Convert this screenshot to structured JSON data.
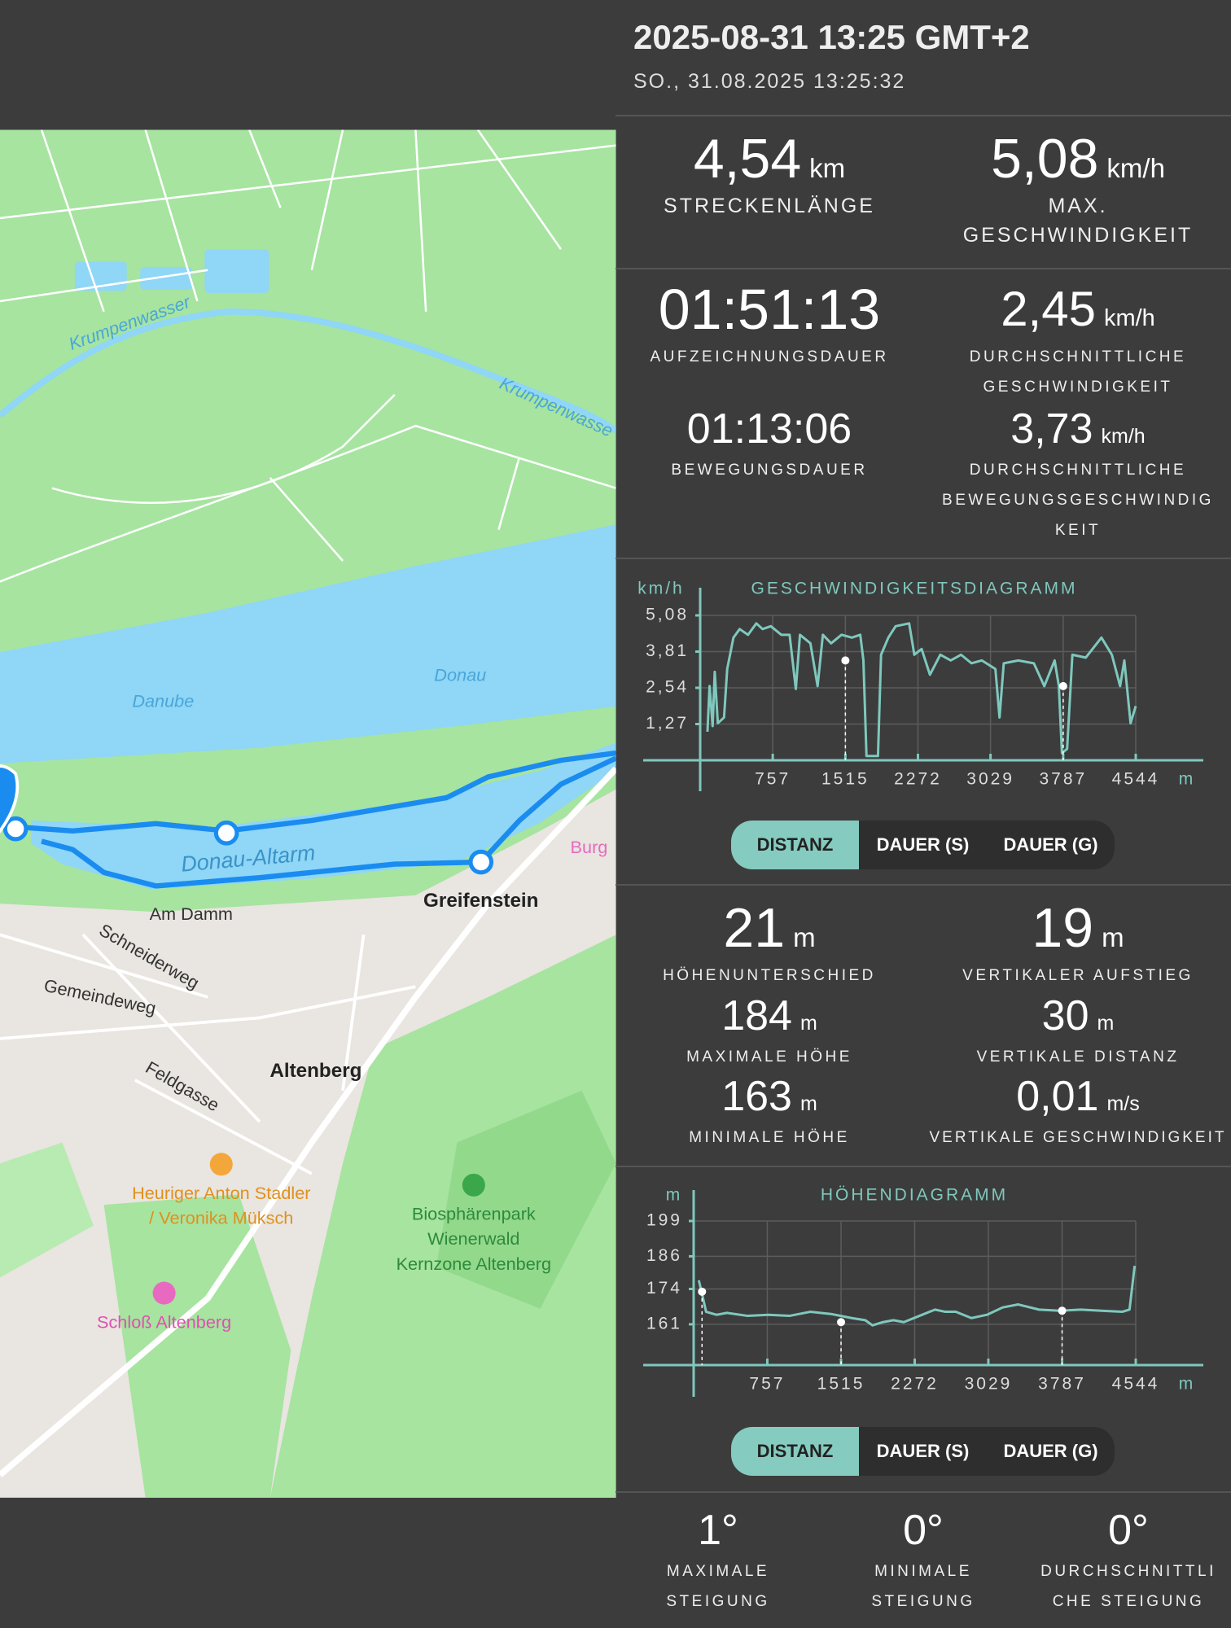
{
  "header": {
    "title": "2025-08-31 13:25 GMT+2",
    "subtitle": "SO., 31.08.2025 13:25:32"
  },
  "summary": [
    {
      "value": "4,54",
      "unit": "km",
      "label": "STRECKENLÄNGE"
    },
    {
      "value": "5,08",
      "unit": "km/h",
      "label": "MAX. GESCHWINDIGKEIT"
    },
    {
      "value": "01:51:13",
      "label": "AUFZEICHNUNGSDAUER"
    },
    {
      "value": "2,45",
      "unit": "km/h",
      "label": "DURCHSCHNITTLICHE GESCHWINDIGKEIT"
    },
    {
      "value": "01:13:06",
      "label": "BEWEGUNGSDAUER"
    },
    {
      "value": "3,73",
      "unit": "km/h",
      "label": "DURCHSCHNITTLICHE BEWEGUNGSGESCHWINDIGKEIT"
    }
  ],
  "speed_chart": {
    "type": "line",
    "title": "GESCHWINDIGKEITSDIAGRAMM",
    "y_label": "km/h",
    "x_label": "m",
    "color": "#7fc8bd",
    "grid": true,
    "x": [
      76,
      98,
      130,
      152,
      184,
      249,
      282,
      347,
      412,
      499,
      586,
      651,
      737,
      846,
      933,
      998,
      1041,
      1150,
      1225,
      1280,
      1366,
      1475,
      1583,
      1670,
      1703,
      1735,
      1855,
      1887,
      1963,
      2039,
      2180,
      2234,
      2310,
      2397,
      2505,
      2614,
      2722,
      2831,
      2939,
      3080,
      3123,
      3167,
      3319,
      3481,
      3590,
      3698,
      3742,
      3774,
      3828,
      3883,
      4023,
      4186,
      4295,
      4381,
      4425,
      4490,
      4544
    ],
    "values": [
      1.0,
      2.6,
      1.2,
      3.1,
      1.3,
      1.5,
      3.2,
      4.3,
      4.6,
      4.4,
      4.8,
      4.6,
      4.7,
      4.4,
      4.4,
      2.5,
      4.4,
      4.1,
      2.6,
      4.4,
      4.1,
      4.4,
      4.3,
      4.4,
      3.5,
      0.15,
      0.15,
      3.7,
      4.3,
      4.7,
      4.8,
      3.7,
      3.9,
      3.0,
      3.7,
      3.5,
      3.7,
      3.4,
      3.5,
      3.2,
      1.5,
      3.4,
      3.5,
      3.4,
      2.6,
      3.5,
      2.6,
      0.25,
      0.4,
      3.7,
      3.6,
      4.3,
      3.7,
      2.6,
      3.5,
      1.3,
      1.9
    ],
    "xlim": [
      0,
      4544
    ],
    "ylim": [
      0,
      5.08
    ],
    "xticks": [
      757,
      1515,
      2272,
      3029,
      3787,
      4544
    ],
    "yticks": [
      {
        "value": 1.27,
        "label": "1,27"
      },
      {
        "value": 2.54,
        "label": "2,54"
      },
      {
        "value": 3.81,
        "label": "3,81"
      },
      {
        "value": 5.08,
        "label": "5,08"
      }
    ],
    "markers": [
      {
        "x": 1515,
        "value": 3.5
      },
      {
        "x": 3787,
        "value": 2.6
      }
    ]
  },
  "speed_buttons": [
    "DISTANZ",
    "DAUER (S)",
    "DAUER (G)"
  ],
  "elevation": [
    {
      "value": "21",
      "unit": "m",
      "label": "HÖHENUNTERSCHIED"
    },
    {
      "value": "19",
      "unit": "m",
      "label": "VERTIKALER AUFSTIEG"
    },
    {
      "value": "184",
      "unit": "m",
      "label": "MAXIMALE HÖHE"
    },
    {
      "value": "30",
      "unit": "m",
      "label": "VERTIKALE DISTANZ"
    },
    {
      "value": "163",
      "unit": "m",
      "label": "MINIMALE HÖHE"
    },
    {
      "value": "0,01",
      "unit": "m/s",
      "label": "VERTIKALE GESCHWINDIGKEIT"
    }
  ],
  "elevation_chart": {
    "type": "line",
    "title": "HÖHENDIAGRAMM",
    "y_label": "m",
    "x_label": "m",
    "color": "#7fc8bd",
    "grid": true,
    "x": [
      53,
      86,
      128,
      235,
      342,
      556,
      770,
      984,
      1198,
      1411,
      1625,
      1764,
      1839,
      1946,
      2053,
      2160,
      2320,
      2481,
      2587,
      2694,
      2855,
      3015,
      3176,
      3336,
      3550,
      3764,
      3978,
      4191,
      4405,
      4480,
      4533
    ],
    "values": [
      177.2,
      172.2,
      165.6,
      164.5,
      165.2,
      164.1,
      164.5,
      164.1,
      165.6,
      164.8,
      163.3,
      162.5,
      160.6,
      161.8,
      162.5,
      161.8,
      164.1,
      166.4,
      165.6,
      165.6,
      163.3,
      164.5,
      167.2,
      168.3,
      166.4,
      166,
      166.4,
      166,
      165.6,
      166.4,
      182.5
    ],
    "xlim": [
      0,
      4544
    ],
    "ylim": [
      146,
      199
    ],
    "xticks": [
      757,
      1515,
      2272,
      3029,
      3787,
      4544
    ],
    "yticks": [
      161,
      174,
      186,
      199
    ],
    "markers": [
      {
        "x": 86,
        "value": 173
      },
      {
        "x": 1515,
        "value": 161.8
      },
      {
        "x": 3787,
        "value": 166
      }
    ]
  },
  "elevation_buttons": [
    "DISTANZ",
    "DAUER (S)",
    "DAUER (G)"
  ],
  "slope": [
    {
      "value": "1°",
      "label": "MAXIMALE STEIGUNG"
    },
    {
      "value": "0°",
      "label": "MINIMALE STEIGUNG"
    },
    {
      "value": "0°",
      "label": "DURCHSCHNITTLICHE STEIGUNG"
    }
  ],
  "map": {
    "labels": [
      "Krumpenwasser",
      "Krumpenwasse",
      "Danube",
      "Donau",
      "Donau-Altarm",
      "Burg",
      "Greifenstein",
      "Am Damm",
      "Schneiderweg",
      "Gemeindeweg",
      "Feldgasse",
      "Altenberg",
      "Heuriger Anton Stadler",
      "/ Veronika Müksch",
      "Biosphärenpark",
      "Wienerwald",
      "Kernzone Altenberg",
      "Schloß Altenberg"
    ]
  }
}
